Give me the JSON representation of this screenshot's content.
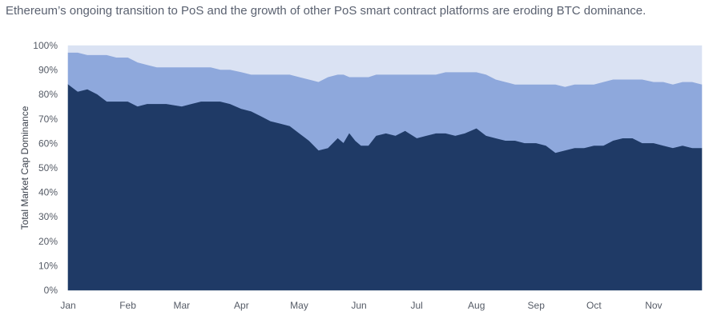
{
  "subtitle": "Ethereum’s ongoing transition to PoS and the growth of other PoS smart contract platforms are eroding BTC dominance.",
  "chart_data": {
    "type": "area",
    "stacked": true,
    "ylabel": "Total Market Cap Dominance",
    "ylim": [
      0,
      100
    ],
    "y_ticks": [
      "0%",
      "10%",
      "20%",
      "30%",
      "40%",
      "50%",
      "60%",
      "70%",
      "80%",
      "90%",
      "100%"
    ],
    "x_ticks": [
      "Jan",
      "Feb",
      "Mar",
      "Apr",
      "May",
      "Jun",
      "Jul",
      "Aug",
      "Sep",
      "Oct",
      "Nov"
    ],
    "grid": false,
    "colors": {
      "bottom_band": "#1f3a66",
      "middle_band": "#8ea8dc",
      "top_band": "#dae2f3"
    },
    "x_day": [
      0,
      5,
      10,
      15,
      20,
      25,
      31,
      36,
      41,
      46,
      51,
      59,
      64,
      69,
      74,
      79,
      84,
      90,
      95,
      100,
      105,
      110,
      115,
      120,
      125,
      130,
      135,
      140,
      143,
      146,
      149,
      152,
      156,
      160,
      165,
      170,
      175,
      181,
      186,
      191,
      196,
      201,
      206,
      212,
      217,
      222,
      227,
      232,
      237,
      243,
      248,
      253,
      258,
      263,
      268,
      273,
      278,
      283,
      288,
      293,
      298,
      304,
      309,
      314,
      319,
      324,
      329
    ],
    "bottom_band_top": [
      84,
      81,
      82,
      80,
      77,
      77,
      77,
      75,
      76,
      76,
      76,
      75,
      76,
      77,
      77,
      77,
      76,
      74,
      73,
      71,
      69,
      68,
      67,
      64,
      61,
      57,
      58,
      62,
      60,
      64,
      61,
      59,
      59,
      63,
      64,
      63,
      65,
      62,
      63,
      64,
      64,
      63,
      64,
      66,
      63,
      62,
      61,
      61,
      60,
      60,
      59,
      56,
      57,
      58,
      58,
      59,
      59,
      61,
      62,
      62,
      60,
      60,
      59,
      58,
      59,
      58,
      58
    ],
    "middle_band_top": [
      97,
      97,
      96,
      96,
      96,
      95,
      95,
      93,
      92,
      91,
      91,
      91,
      91,
      91,
      91,
      90,
      90,
      89,
      88,
      88,
      88,
      88,
      88,
      87,
      86,
      85,
      87,
      88,
      88,
      87,
      87,
      87,
      87,
      88,
      88,
      88,
      88,
      88,
      88,
      88,
      89,
      89,
      89,
      89,
      88,
      86,
      85,
      84,
      84,
      84,
      84,
      84,
      83,
      84,
      84,
      84,
      85,
      86,
      86,
      86,
      86,
      85,
      85,
      84,
      85,
      85,
      84
    ],
    "top_band_top": 100
  }
}
